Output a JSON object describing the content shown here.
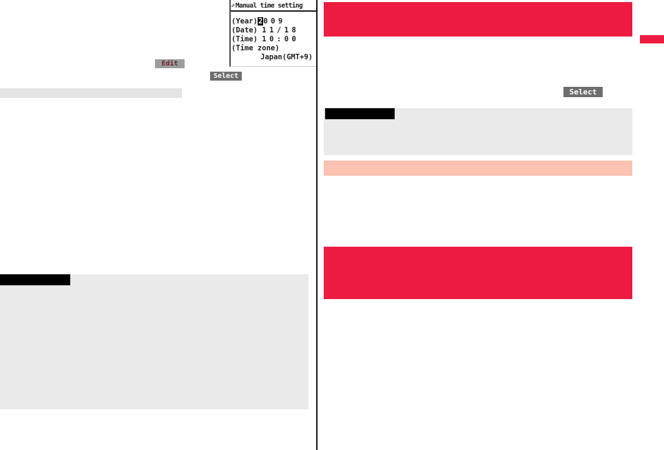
{
  "colors": {
    "accent_red": "#ED1B40",
    "accent_pink": "#FBC1B1",
    "panel_gray": "#EAEAEA",
    "bar_gray": "#E4E4E4",
    "label_black": "#000000"
  },
  "phone_screen": {
    "pencil_icon": "✎",
    "title": "Manual time setting",
    "year_label": "(Year)",
    "year_cursor_digit": "2",
    "year_rest_digits": "009",
    "date_label": "(Date)",
    "date_value": "11/18",
    "time_label": "(Time)",
    "time_value": "10:00",
    "timezone_label": "(Time zone)",
    "timezone_value": "Japan(GMT+9)"
  },
  "keys": {
    "edit_label": "Edit",
    "select_left_label": "Select",
    "select_right_label": "Select"
  }
}
